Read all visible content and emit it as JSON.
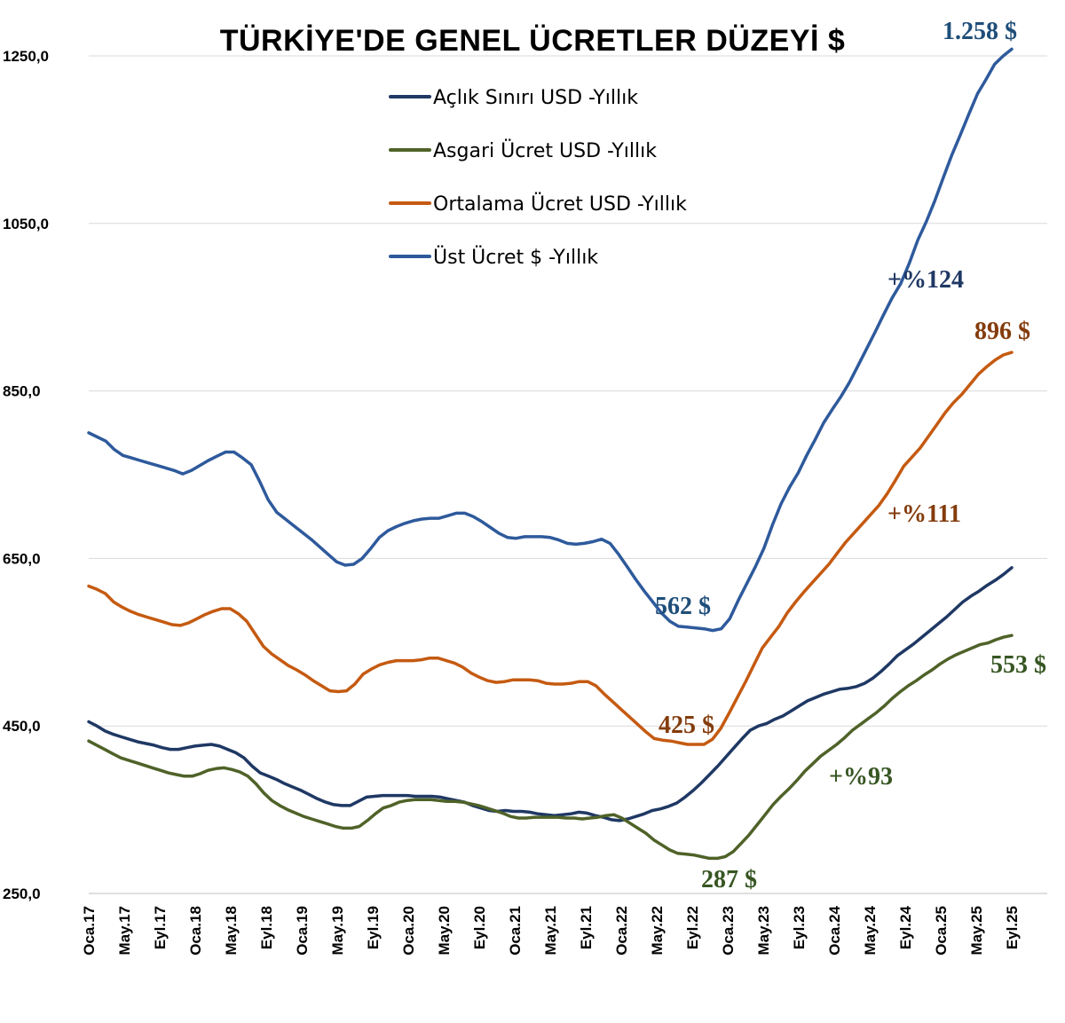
{
  "chart_data": {
    "type": "line",
    "title": "TÜRKİYE'DE GENEL ÜCRETLER DÜZEYİ $",
    "xlabel": "",
    "ylabel": "",
    "ylim": [
      250,
      1250
    ],
    "grid": true,
    "legend_position": "top-left",
    "yticks": [
      "250,0",
      "450,0",
      "650,0",
      "850,0",
      "1050,0",
      "1250,0"
    ],
    "ytick_values": [
      250,
      450,
      650,
      850,
      1050,
      1250
    ],
    "x_tick_labels": [
      "Oca.17",
      "May.17",
      "Eyl.17",
      "Oca.18",
      "May.18",
      "Eyl.18",
      "Oca.19",
      "May.19",
      "Eyl.19",
      "Oca.20",
      "May.20",
      "Eyl.20",
      "Oca.21",
      "May.21",
      "Eyl.21",
      "Oca.22",
      "May.22",
      "Eyl.22",
      "Oca.23",
      "May.23",
      "Eyl.23",
      "Oca.24",
      "May.24",
      "Eyl.24",
      "Oca.25",
      "May.25",
      "Eyl.25"
    ],
    "series": [
      {
        "name": "Açlık Sınırı USD -Yıllık",
        "color": "#1F3864",
        "values": [
          455,
          450,
          444,
          440,
          437,
          434,
          431,
          429,
          427,
          424,
          422,
          422,
          424,
          426,
          427,
          428,
          426,
          422,
          418,
          412,
          402,
          394,
          390,
          386,
          381,
          377,
          373,
          368,
          363,
          359,
          356,
          355,
          355,
          360,
          365,
          366,
          367,
          367,
          367,
          367,
          366,
          366,
          366,
          365,
          363,
          361,
          359,
          355,
          352,
          349,
          348,
          349,
          348,
          348,
          347,
          345,
          344,
          343,
          344,
          345,
          347,
          346,
          343,
          341,
          338,
          337,
          339,
          342,
          345,
          349,
          351,
          354,
          358,
          365,
          373,
          382,
          392,
          402,
          413,
          424,
          435,
          445,
          450,
          453,
          458,
          462,
          468,
          474,
          480,
          484,
          488,
          491,
          494,
          495,
          497,
          501,
          507,
          515,
          524,
          534,
          541,
          548,
          556,
          564,
          572,
          580,
          589,
          598,
          605,
          611,
          618,
          624,
          631,
          639
        ]
      },
      {
        "name": "Asgari Ücret USD -Yıllık",
        "color": "#4F6228",
        "values": [
          432,
          427,
          422,
          417,
          412,
          409,
          406,
          403,
          400,
          397,
          394,
          392,
          390,
          390,
          393,
          397,
          399,
          400,
          398,
          395,
          390,
          381,
          370,
          361,
          355,
          350,
          346,
          342,
          339,
          336,
          333,
          330,
          328,
          328,
          330,
          337,
          345,
          352,
          355,
          359,
          361,
          362,
          362,
          362,
          361,
          360,
          360,
          359,
          357,
          355,
          352,
          349,
          346,
          342,
          340,
          340,
          341,
          341,
          341,
          341,
          340,
          340,
          339,
          340,
          341,
          343,
          344,
          340,
          334,
          328,
          322,
          314,
          308,
          302,
          298,
          297,
          296,
          294,
          292,
          292,
          294,
          300,
          310,
          320,
          332,
          344,
          356,
          366,
          375,
          385,
          396,
          405,
          414,
          421,
          428,
          436,
          445,
          452,
          459,
          466,
          474,
          483,
          491,
          498,
          504,
          511,
          517,
          524,
          530,
          535,
          539,
          543,
          547,
          549,
          553,
          556,
          558
        ]
      },
      {
        "name": "Ortalama Ücret USD -Yıllık",
        "color": "#C55A11",
        "values": [
          617,
          613,
          608,
          598,
          592,
          587,
          583,
          580,
          577,
          574,
          571,
          570,
          573,
          578,
          583,
          587,
          590,
          590,
          584,
          575,
          560,
          545,
          536,
          529,
          522,
          517,
          511,
          504,
          498,
          492,
          491,
          492,
          500,
          512,
          518,
          523,
          526,
          528,
          528,
          528,
          529,
          531,
          531,
          528,
          525,
          520,
          513,
          508,
          504,
          502,
          503,
          505,
          505,
          505,
          504,
          501,
          500,
          500,
          501,
          503,
          503,
          498,
          488,
          479,
          470,
          461,
          452,
          443,
          435,
          433,
          432,
          430,
          428,
          428,
          428,
          434,
          447,
          465,
          484,
          503,
          523,
          543,
          556,
          569,
          585,
          598,
          610,
          621,
          632,
          643,
          656,
          669,
          680,
          691,
          702,
          713,
          727,
          743,
          760,
          771,
          782,
          796,
          810,
          824,
          836,
          846,
          858,
          870,
          879,
          887,
          893,
          896
        ]
      },
      {
        "name": "Üst Ücret $ -Yıllık",
        "color": "#2E5A9C",
        "values": [
          800,
          795,
          790,
          780,
          773,
          770,
          767,
          764,
          761,
          758,
          755,
          751,
          755,
          761,
          767,
          772,
          777,
          777,
          770,
          762,
          742,
          720,
          705,
          697,
          689,
          681,
          673,
          664,
          655,
          646,
          642,
          643,
          650,
          662,
          675,
          683,
          688,
          692,
          695,
          697,
          698,
          698,
          701,
          704,
          704,
          700,
          694,
          687,
          680,
          675,
          674,
          676,
          676,
          676,
          675,
          672,
          668,
          667,
          668,
          670,
          673,
          668,
          655,
          640,
          625,
          611,
          598,
          585,
          575,
          569,
          568,
          567,
          566,
          564,
          566,
          578,
          600,
          620,
          640,
          662,
          690,
          715,
          735,
          752,
          773,
          792,
          812,
          828,
          843,
          860,
          880,
          900,
          920,
          941,
          961,
          978,
          1002,
          1030,
          1052,
          1077,
          1105,
          1132,
          1156,
          1181,
          1205,
          1222,
          1240,
          1250,
          1258
        ]
      }
    ],
    "annotations": [
      {
        "text": "1.258 $",
        "series": 3,
        "color": "#1F4E79"
      },
      {
        "text": "+%124",
        "series": 3,
        "color": "#1F3864"
      },
      {
        "text": "562 $",
        "series": 3,
        "color": "#1F4E79"
      },
      {
        "text": "896 $",
        "series": 2,
        "color": "#843C0C"
      },
      {
        "text": "+%111",
        "series": 2,
        "color": "#843C0C"
      },
      {
        "text": "425 $",
        "series": 2,
        "color": "#843C0C"
      },
      {
        "text": "553 $",
        "series": 1,
        "color": "#375623"
      },
      {
        "text": "+%93",
        "series": 1,
        "color": "#375623"
      },
      {
        "text": "287 $",
        "series": 1,
        "color": "#375623"
      }
    ]
  }
}
